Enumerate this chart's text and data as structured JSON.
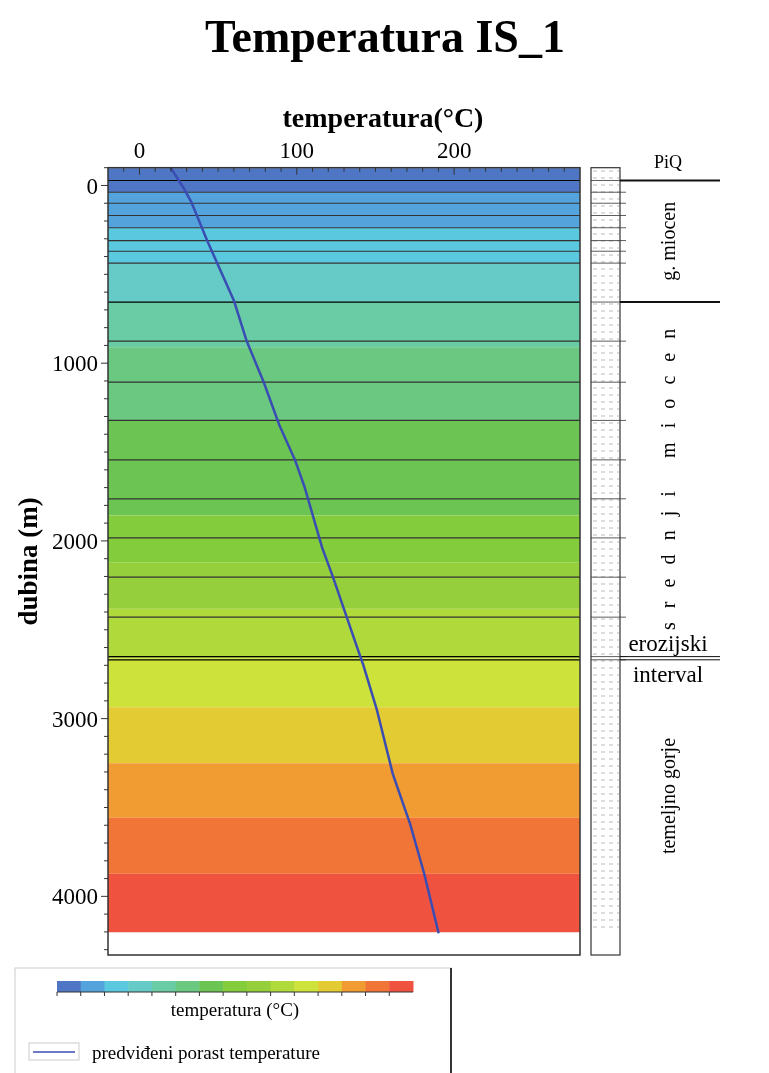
{
  "chart_data": {
    "type": "line",
    "title": "Temperatura IS_1",
    "xlabel": "temperatura(°C)",
    "ylabel": "dubina (m)",
    "clabel": "temperatura (°C)",
    "xlim": [
      -20,
      280
    ],
    "ylim": [
      4330,
      -100
    ],
    "xticks": [
      {
        "value": -10,
        "label": null
      },
      0,
      {
        "value": 10,
        "label": null
      },
      {
        "value": 20,
        "label": null
      },
      {
        "value": 30,
        "label": null
      },
      {
        "value": 40,
        "label": null
      },
      {
        "value": 50,
        "label": null
      },
      {
        "value": 60,
        "label": null
      },
      {
        "value": 70,
        "label": null
      },
      {
        "value": 80,
        "label": null
      },
      {
        "value": 90,
        "label": null
      },
      100,
      {
        "value": 110,
        "label": null
      },
      {
        "value": 120,
        "label": null
      },
      {
        "value": 130,
        "label": null
      },
      {
        "value": 140,
        "label": null
      },
      {
        "value": 150,
        "label": null
      },
      {
        "value": 160,
        "label": null
      },
      {
        "value": 170,
        "label": null
      },
      {
        "value": 180,
        "label": null
      },
      {
        "value": 190,
        "label": null
      },
      200,
      {
        "value": 210,
        "label": null
      },
      {
        "value": 220,
        "label": null
      },
      {
        "value": 230,
        "label": null
      },
      {
        "value": 240,
        "label": null
      },
      {
        "value": 250,
        "label": null
      },
      {
        "value": 260,
        "label": null
      },
      {
        "value": 270,
        "label": null
      }
    ],
    "yticks": [
      {
        "value": -100,
        "label": null
      },
      0,
      {
        "value": 100,
        "label": null
      },
      {
        "value": 200,
        "label": null
      },
      {
        "value": 300,
        "label": null
      },
      {
        "value": 400,
        "label": null
      },
      {
        "value": 500,
        "label": null
      },
      {
        "value": 600,
        "label": null
      },
      {
        "value": 700,
        "label": null
      },
      {
        "value": 800,
        "label": null
      },
      {
        "value": 900,
        "label": null
      },
      1000,
      {
        "value": 1100,
        "label": null
      },
      {
        "value": 1200,
        "label": null
      },
      {
        "value": 1300,
        "label": null
      },
      {
        "value": 1400,
        "label": null
      },
      {
        "value": 1500,
        "label": null
      },
      {
        "value": 1600,
        "label": null
      },
      {
        "value": 1700,
        "label": null
      },
      {
        "value": 1800,
        "label": null
      },
      {
        "value": 1900,
        "label": null
      },
      2000,
      {
        "value": 2100,
        "label": null
      },
      {
        "value": 2200,
        "label": null
      },
      {
        "value": 2300,
        "label": null
      },
      {
        "value": 2400,
        "label": null
      },
      {
        "value": 2500,
        "label": null
      },
      {
        "value": 2600,
        "label": null
      },
      {
        "value": 2700,
        "label": null
      },
      {
        "value": 2800,
        "label": null
      },
      {
        "value": 2900,
        "label": null
      },
      3000,
      {
        "value": 3100,
        "label": null
      },
      {
        "value": 3200,
        "label": null
      },
      {
        "value": 3300,
        "label": null
      },
      {
        "value": 3400,
        "label": null
      },
      {
        "value": 3500,
        "label": null
      },
      {
        "value": 3600,
        "label": null
      },
      {
        "value": 3700,
        "label": null
      },
      {
        "value": 3800,
        "label": null
      },
      {
        "value": 3900,
        "label": null
      },
      4000,
      {
        "value": 4100,
        "label": null
      },
      {
        "value": 4200,
        "label": null
      },
      {
        "value": 4300,
        "label": null
      }
    ],
    "series": [
      {
        "name": "predviđeni porast temperature",
        "color": "#3a4db3",
        "x": [
          20,
          28,
          33,
          36.5,
          43,
          60,
          68,
          79,
          89,
          99,
          105,
          116,
          123,
          139,
          142,
          151,
          161,
          172,
          181,
          190
        ],
        "values": [
          -97,
          13,
          94,
          169,
          310,
          647,
          872,
          1107,
          1351,
          1548,
          1698,
          2035,
          2204,
          2616,
          2691,
          2954,
          3311,
          3592,
          3873,
          4202
        ]
      }
    ],
    "bands": [
      {
        "axis": "y",
        "from": -97,
        "to": 38,
        "color": "#4f76c5"
      },
      {
        "axis": "y",
        "from": 38,
        "to": 238,
        "color": "#55a3dc"
      },
      {
        "axis": "y",
        "from": 238,
        "to": 437,
        "color": "#5ac8df"
      },
      {
        "axis": "y",
        "from": 437,
        "to": 656,
        "color": "#66cbc6"
      },
      {
        "axis": "y",
        "from": 656,
        "to": 910,
        "color": "#6acca4"
      },
      {
        "axis": "y",
        "from": 910,
        "to": 1322,
        "color": "#6ac880"
      },
      {
        "axis": "y",
        "from": 1322,
        "to": 1857,
        "color": "#6cc552"
      },
      {
        "axis": "y",
        "from": 1857,
        "to": 2120,
        "color": "#83cc3c"
      },
      {
        "axis": "y",
        "from": 2120,
        "to": 2382,
        "color": "#96cf3c"
      },
      {
        "axis": "y",
        "from": 2382,
        "to": 2660,
        "color": "#b0d93c"
      },
      {
        "axis": "y",
        "from": 2660,
        "to": 2936,
        "color": "#cde23a"
      },
      {
        "axis": "y",
        "from": 2936,
        "to": 3251,
        "color": "#e3cb33"
      },
      {
        "axis": "y",
        "from": 3251,
        "to": 3558,
        "color": "#f09c33"
      },
      {
        "axis": "y",
        "from": 3558,
        "to": 3873,
        "color": "#f27538"
      },
      {
        "axis": "y",
        "from": 3873,
        "to": 4202,
        "color": "#ef5340"
      }
    ],
    "annotations": [
      "PiQ",
      "g. miocen",
      "srednji miocen",
      "erozijski interval",
      "temeljno gorje"
    ],
    "ref_lines": [
      {
        "axis": "y",
        "value": -28,
        "color": "#000000"
      },
      {
        "axis": "y",
        "value": 38,
        "color": "#333333"
      },
      {
        "axis": "y",
        "value": 100,
        "color": "#333333"
      },
      {
        "axis": "y",
        "value": 169,
        "color": "#333333"
      },
      {
        "axis": "y",
        "value": 238,
        "color": "#333333"
      },
      {
        "axis": "y",
        "value": 310,
        "color": "#333333"
      },
      {
        "axis": "y",
        "value": 370,
        "color": "#333333"
      },
      {
        "axis": "y",
        "value": 437,
        "color": "#333333"
      },
      {
        "axis": "y",
        "value": 656,
        "color": "#000000"
      },
      {
        "axis": "y",
        "value": 876,
        "color": "#333333"
      },
      {
        "axis": "y",
        "value": 1107,
        "color": "#333333"
      },
      {
        "axis": "y",
        "value": 1322,
        "color": "#333333"
      },
      {
        "axis": "y",
        "value": 1544,
        "color": "#333333"
      },
      {
        "axis": "y",
        "value": 1763,
        "color": "#333333"
      },
      {
        "axis": "y",
        "value": 1983,
        "color": "#333333"
      },
      {
        "axis": "y",
        "value": 2204,
        "color": "#333333"
      },
      {
        "axis": "y",
        "value": 2429,
        "color": "#333333"
      },
      {
        "axis": "y",
        "value": 2651,
        "color": "#000000"
      },
      {
        "axis": "y",
        "value": 2669,
        "color": "#000000"
      }
    ],
    "legend": "bottom",
    "marker": "none",
    "line_style": "solid",
    "grid": false
  }
}
